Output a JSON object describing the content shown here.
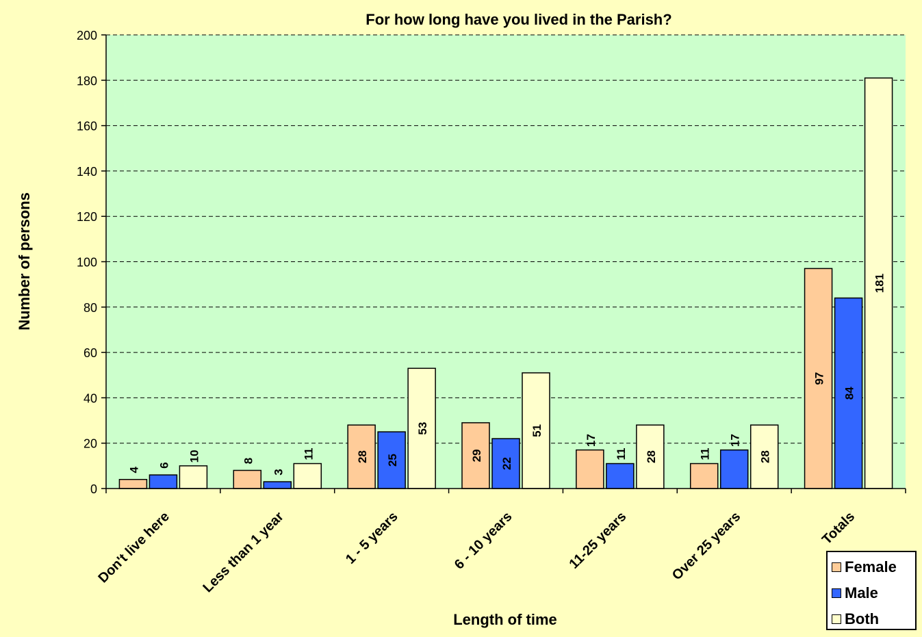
{
  "chart_data": {
    "type": "bar",
    "title": "For how long have you lived in the Parish?",
    "xlabel": "Length of time",
    "ylabel": "Number of persons",
    "ylim": [
      0,
      200
    ],
    "yticks": [
      0,
      20,
      40,
      60,
      80,
      100,
      120,
      140,
      160,
      180,
      200
    ],
    "grid": true,
    "legend_position": "bottom-right",
    "categories": [
      "Don't live here",
      "Less than 1 year",
      "1 - 5 years",
      "6 - 10 years",
      "11-25 years",
      "Over 25 years",
      "Totals"
    ],
    "series": [
      {
        "name": "Female",
        "color": "#ffcc99",
        "values": [
          4,
          8,
          28,
          29,
          17,
          11,
          97
        ]
      },
      {
        "name": "Male",
        "color": "#3366ff",
        "values": [
          6,
          3,
          25,
          22,
          11,
          17,
          84
        ]
      },
      {
        "name": "Both",
        "color": "#ffffcc",
        "values": [
          10,
          11,
          53,
          51,
          28,
          28,
          181
        ]
      }
    ],
    "colors": {
      "plot_background": "#ccffcc",
      "page_background": "#ffffc0"
    }
  }
}
